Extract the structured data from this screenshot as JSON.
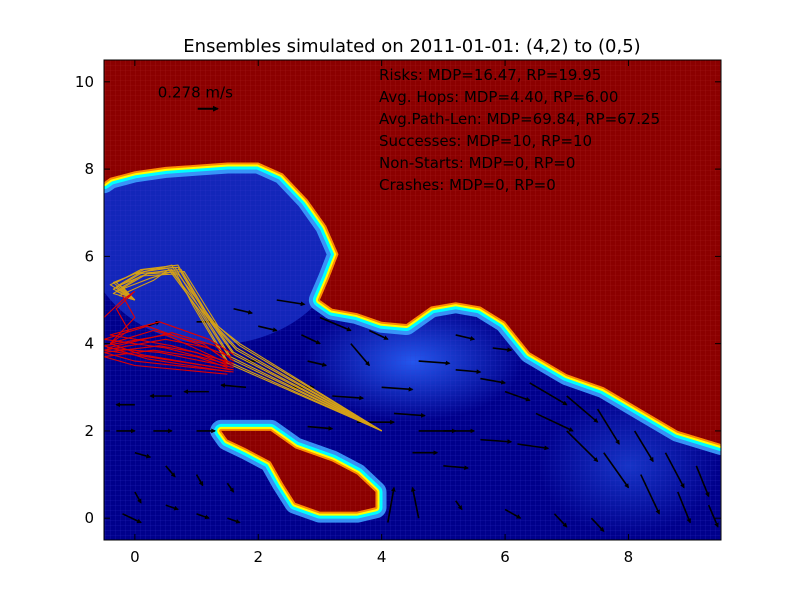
{
  "chart_data": {
    "type": "heatmap",
    "title": "Ensembles simulated on 2011-01-01: (4,2) to (0,5)",
    "xlabel": "",
    "ylabel": "",
    "xlim": [
      -0.5,
      9.5
    ],
    "ylim": [
      -0.5,
      10.5
    ],
    "x_ticks": [
      0,
      2,
      4,
      6,
      8
    ],
    "y_ticks": [
      0,
      2,
      4,
      6,
      8,
      10
    ],
    "grid": false,
    "colors": {
      "land": "#8b0000",
      "deep_water": "#00008b",
      "mid_water": "#1f3fd8",
      "shallow_water": "#3ca0ff",
      "shore": "#00ffff",
      "coast": "#ffff00",
      "mdp_paths": "#d4a017",
      "rp_paths": "#e00000",
      "arrows": "#000000"
    },
    "quiver_key": {
      "label": "0.278 m/s",
      "x": 0.5,
      "y": 9.75
    },
    "annotations": [
      "Risks: MDP=16.47, RP=19.95",
      "Avg. Hops: MDP=4.40, RP=6.00",
      "Avg.Path-Len: MDP=69.84, RP=67.25",
      "Successes: MDP=10, RP=10",
      "Non-Starts: MDP=0, RP=0",
      "Crashes: MDP=0, RP=0"
    ],
    "coastline": [
      [
        -0.5,
        7.7
      ],
      [
        -0.4,
        7.8
      ],
      [
        0.0,
        7.95
      ],
      [
        0.5,
        8.05
      ],
      [
        1.0,
        8.1
      ],
      [
        1.5,
        8.15
      ],
      [
        2.0,
        8.15
      ],
      [
        2.4,
        7.9
      ],
      [
        2.8,
        7.3
      ],
      [
        3.1,
        6.7
      ],
      [
        3.3,
        6.05
      ],
      [
        3.15,
        5.5
      ],
      [
        3.0,
        5.0
      ],
      [
        3.2,
        4.8
      ],
      [
        3.6,
        4.7
      ],
      [
        4.0,
        4.5
      ],
      [
        4.4,
        4.45
      ],
      [
        4.8,
        4.85
      ],
      [
        5.2,
        4.95
      ],
      [
        5.6,
        4.85
      ],
      [
        6.0,
        4.5
      ],
      [
        6.4,
        3.8
      ],
      [
        7.0,
        3.3
      ],
      [
        7.6,
        3.0
      ],
      [
        8.2,
        2.5
      ],
      [
        8.8,
        2.0
      ],
      [
        9.5,
        1.7
      ]
    ],
    "island": [
      [
        1.4,
        2.0
      ],
      [
        2.2,
        2.0
      ],
      [
        2.6,
        1.6
      ],
      [
        3.2,
        1.3
      ],
      [
        3.6,
        1.0
      ],
      [
        3.9,
        0.6
      ],
      [
        3.9,
        0.25
      ],
      [
        3.6,
        0.15
      ],
      [
        3.0,
        0.15
      ],
      [
        2.6,
        0.35
      ],
      [
        2.4,
        0.8
      ],
      [
        2.2,
        1.3
      ],
      [
        1.8,
        1.6
      ],
      [
        1.5,
        1.8
      ]
    ],
    "vectors": [
      [
        2.3,
        5.0,
        0.45,
        -0.1
      ],
      [
        3.0,
        4.6,
        0.5,
        -0.3
      ],
      [
        3.5,
        4.0,
        0.3,
        -0.5
      ],
      [
        4.6,
        3.6,
        0.5,
        -0.05
      ],
      [
        5.2,
        3.4,
        0.4,
        -0.05
      ],
      [
        5.6,
        3.2,
        0.4,
        -0.1
      ],
      [
        6.4,
        3.1,
        0.6,
        -0.5
      ],
      [
        7.0,
        2.8,
        0.5,
        -0.6
      ],
      [
        7.5,
        2.5,
        0.35,
        -0.8
      ],
      [
        8.1,
        2.0,
        0.3,
        -0.7
      ],
      [
        8.6,
        1.5,
        0.3,
        -0.8
      ],
      [
        9.1,
        1.2,
        0.2,
        -0.7
      ],
      [
        6.5,
        2.4,
        0.6,
        -0.4
      ],
      [
        7.0,
        2.0,
        0.5,
        -0.7
      ],
      [
        7.6,
        1.5,
        0.4,
        -0.8
      ],
      [
        8.2,
        1.0,
        0.3,
        -0.9
      ],
      [
        8.8,
        0.6,
        0.2,
        -0.7
      ],
      [
        9.3,
        0.3,
        0.15,
        -0.5
      ],
      [
        5.0,
        2.0,
        0.5,
        0.0
      ],
      [
        5.6,
        1.8,
        0.5,
        -0.05
      ],
      [
        6.2,
        1.7,
        0.5,
        -0.1
      ],
      [
        4.6,
        2.0,
        0.6,
        0.0
      ],
      [
        4.5,
        1.5,
        0.4,
        0.0
      ],
      [
        5.0,
        1.2,
        0.4,
        -0.05
      ],
      [
        3.6,
        2.2,
        0.6,
        0.0
      ],
      [
        3.2,
        2.8,
        0.5,
        -0.05
      ],
      [
        2.5,
        3.0,
        0.4,
        0.0
      ],
      [
        1.8,
        3.0,
        -0.4,
        0.05
      ],
      [
        1.2,
        2.9,
        -0.4,
        0.0
      ],
      [
        0.6,
        2.8,
        -0.35,
        0.0
      ],
      [
        0.0,
        2.6,
        -0.3,
        0.0
      ],
      [
        -0.3,
        2.0,
        0.3,
        0.0
      ],
      [
        0.3,
        2.0,
        0.3,
        0.0
      ],
      [
        1.0,
        2.0,
        0.3,
        0.0
      ],
      [
        2.8,
        2.1,
        0.4,
        -0.05
      ],
      [
        4.0,
        3.0,
        0.5,
        -0.05
      ],
      [
        4.2,
        2.4,
        0.5,
        -0.05
      ],
      [
        0.0,
        1.5,
        0.25,
        -0.1
      ],
      [
        0.5,
        1.2,
        0.15,
        -0.25
      ],
      [
        1.0,
        1.0,
        0.1,
        -0.25
      ],
      [
        1.5,
        0.8,
        0.1,
        -0.2
      ],
      [
        0.0,
        0.6,
        0.1,
        -0.25
      ],
      [
        0.5,
        0.3,
        0.2,
        -0.1
      ],
      [
        1.0,
        0.1,
        0.2,
        -0.1
      ],
      [
        1.5,
        0.0,
        0.2,
        -0.1
      ],
      [
        -0.2,
        0.1,
        0.3,
        -0.2
      ],
      [
        4.1,
        -0.1,
        0.1,
        0.8
      ],
      [
        4.6,
        0.0,
        -0.1,
        0.7
      ],
      [
        5.2,
        0.4,
        0.1,
        -0.2
      ],
      [
        6.0,
        0.2,
        0.25,
        -0.2
      ],
      [
        6.8,
        0.1,
        0.2,
        -0.3
      ],
      [
        7.4,
        0.0,
        0.2,
        -0.3
      ],
      [
        2.0,
        4.4,
        0.3,
        -0.1
      ],
      [
        1.6,
        4.8,
        0.3,
        -0.1
      ],
      [
        2.7,
        4.2,
        0.3,
        -0.2
      ],
      [
        3.8,
        4.3,
        0.3,
        -0.2
      ],
      [
        5.2,
        4.2,
        0.3,
        -0.1
      ],
      [
        5.8,
        3.9,
        0.3,
        -0.05
      ],
      [
        6.0,
        2.9,
        0.4,
        -0.2
      ],
      [
        2.0,
        3.6,
        -0.2,
        0.0
      ],
      [
        2.8,
        3.6,
        0.3,
        -0.1
      ],
      [
        0.2,
        4.4,
        0.2,
        0.1
      ],
      [
        1.0,
        4.5,
        0.3,
        0.0
      ]
    ],
    "mdp_paths": [
      [
        [
          4.0,
          2.0
        ],
        [
          1.5,
          3.6
        ],
        [
          1.0,
          4.8
        ],
        [
          0.6,
          5.7
        ],
        [
          0.2,
          5.6
        ],
        [
          -0.3,
          5.3
        ],
        [
          0.0,
          5.0
        ]
      ],
      [
        [
          4.0,
          2.0
        ],
        [
          1.55,
          3.7
        ],
        [
          1.1,
          4.7
        ],
        [
          0.65,
          5.75
        ],
        [
          0.15,
          5.65
        ],
        [
          -0.35,
          5.25
        ],
        [
          0.0,
          5.0
        ]
      ],
      [
        [
          4.0,
          2.0
        ],
        [
          1.6,
          3.8
        ],
        [
          1.2,
          4.6
        ],
        [
          0.7,
          5.8
        ],
        [
          0.1,
          5.7
        ],
        [
          -0.3,
          5.4
        ],
        [
          0.0,
          5.0
        ]
      ],
      [
        [
          4.0,
          2.0
        ],
        [
          1.65,
          3.9
        ],
        [
          1.25,
          4.5
        ],
        [
          0.75,
          5.7
        ],
        [
          0.05,
          5.6
        ],
        [
          -0.25,
          5.35
        ],
        [
          0.0,
          5.0
        ]
      ],
      [
        [
          4.0,
          2.0
        ],
        [
          1.7,
          4.0
        ],
        [
          1.3,
          4.45
        ],
        [
          0.7,
          5.6
        ],
        [
          0.1,
          5.55
        ],
        [
          -0.2,
          5.3
        ],
        [
          0.0,
          5.0
        ]
      ],
      [
        [
          4.0,
          2.0
        ],
        [
          1.7,
          3.95
        ],
        [
          1.35,
          4.4
        ],
        [
          0.8,
          5.65
        ],
        [
          0.2,
          5.6
        ],
        [
          -0.35,
          5.15
        ],
        [
          0.0,
          5.0
        ]
      ],
      [
        [
          4.0,
          2.0
        ],
        [
          1.6,
          3.75
        ],
        [
          1.15,
          4.65
        ],
        [
          0.6,
          5.65
        ],
        [
          0.25,
          5.5
        ],
        [
          -0.3,
          5.2
        ],
        [
          0.0,
          5.0
        ]
      ],
      [
        [
          4.0,
          2.0
        ],
        [
          1.55,
          3.65
        ],
        [
          1.05,
          4.75
        ],
        [
          0.55,
          5.7
        ],
        [
          0.3,
          5.45
        ],
        [
          -0.25,
          5.1
        ],
        [
          0.0,
          5.0
        ]
      ],
      [
        [
          4.0,
          2.0
        ],
        [
          1.65,
          3.85
        ],
        [
          1.2,
          4.55
        ],
        [
          0.7,
          5.75
        ],
        [
          0.15,
          5.7
        ],
        [
          -0.4,
          5.35
        ],
        [
          0.0,
          5.0
        ]
      ],
      [
        [
          4.0,
          2.0
        ],
        [
          1.5,
          3.55
        ],
        [
          0.95,
          4.85
        ],
        [
          0.6,
          5.8
        ],
        [
          0.0,
          5.6
        ],
        [
          -0.35,
          5.4
        ],
        [
          0.0,
          5.0
        ]
      ]
    ],
    "rp_paths": [
      [
        [
          1.6,
          3.35
        ],
        [
          0.0,
          3.6
        ],
        [
          -0.5,
          3.8
        ],
        [
          0.4,
          3.95
        ],
        [
          1.0,
          3.8
        ],
        [
          1.5,
          3.5
        ]
      ],
      [
        [
          1.6,
          3.4
        ],
        [
          0.2,
          3.7
        ],
        [
          -0.5,
          3.85
        ],
        [
          0.5,
          4.1
        ],
        [
          1.2,
          3.9
        ],
        [
          1.55,
          3.55
        ]
      ],
      [
        [
          1.6,
          3.45
        ],
        [
          0.4,
          3.8
        ],
        [
          -0.45,
          3.9
        ],
        [
          0.6,
          4.25
        ],
        [
          1.3,
          3.95
        ],
        [
          1.6,
          3.6
        ]
      ],
      [
        [
          1.55,
          3.4
        ],
        [
          0.1,
          3.75
        ],
        [
          -0.4,
          4.0
        ],
        [
          0.3,
          4.3
        ],
        [
          1.1,
          4.0
        ],
        [
          1.5,
          3.6
        ]
      ],
      [
        [
          1.6,
          3.5
        ],
        [
          0.5,
          3.9
        ],
        [
          -0.5,
          4.1
        ],
        [
          0.2,
          4.4
        ],
        [
          0.9,
          4.05
        ],
        [
          1.55,
          3.7
        ]
      ],
      [
        [
          1.5,
          3.3
        ],
        [
          0.0,
          3.5
        ],
        [
          -0.5,
          3.7
        ],
        [
          0.3,
          3.85
        ],
        [
          1.0,
          3.7
        ],
        [
          1.5,
          3.45
        ]
      ],
      [
        [
          1.6,
          3.55
        ],
        [
          0.6,
          3.95
        ],
        [
          -0.4,
          4.2
        ],
        [
          0.4,
          4.5
        ],
        [
          1.2,
          4.1
        ],
        [
          1.6,
          3.75
        ]
      ],
      [
        [
          1.55,
          3.35
        ],
        [
          0.2,
          3.65
        ],
        [
          -0.5,
          3.95
        ],
        [
          0.5,
          4.2
        ],
        [
          1.05,
          3.85
        ],
        [
          1.5,
          3.55
        ]
      ]
    ],
    "rp_zigzag": [
      [
        -0.5,
        4.6
      ],
      [
        -0.2,
        5.0
      ],
      [
        0.0,
        5.2
      ],
      [
        -0.3,
        4.8
      ],
      [
        -0.1,
        4.3
      ],
      [
        -0.4,
        4.0
      ],
      [
        0.0,
        4.6
      ],
      [
        -0.2,
        5.1
      ]
    ]
  }
}
